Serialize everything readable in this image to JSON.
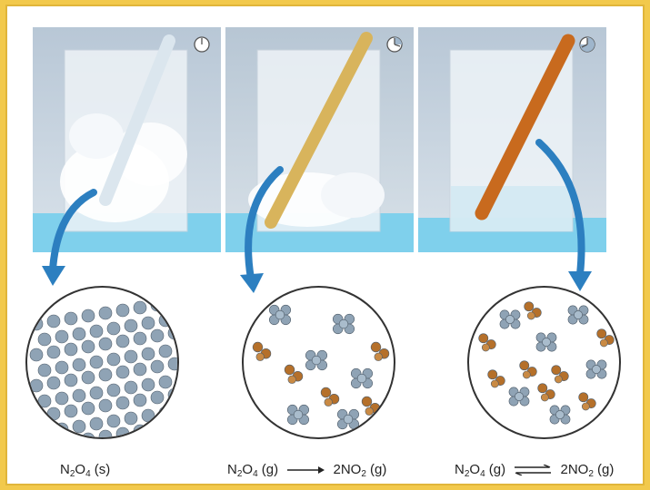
{
  "stages": [
    {
      "time_icon": "clock-start-icon",
      "liquid_color": "#dfe9f2",
      "tube_color": "#dbe6ee",
      "caption": {
        "formula": "N",
        "sub1": "2",
        "mid": "O",
        "sub2": "4",
        "state": " (s)"
      }
    },
    {
      "time_icon": "clock-quarter-icon",
      "liquid_color": "#e7eef3",
      "tube_color": "#d8b45c",
      "caption": {
        "formula": "N",
        "sub1": "2",
        "mid": "O",
        "sub2": "4",
        "state": " (g)",
        "arrow": "forward",
        "product_coef": "2NO",
        "product_sub": "2",
        "product_state": " (g)"
      }
    },
    {
      "time_icon": "clock-three-quarter-icon",
      "liquid_color": "#eaf3f8",
      "tube_color": "#c86a1e",
      "caption": {
        "formula": "N",
        "sub1": "2",
        "mid": "O",
        "sub2": "4",
        "state": " (g)",
        "arrow": "equilibrium",
        "product_coef": "2NO",
        "product_sub": "2",
        "product_state": " (g)"
      }
    }
  ],
  "colors": {
    "background": "#f2c94c",
    "arrow_blue": "#2c7fc0",
    "n2o4_molecule": "#8fa3b5",
    "no2_molecule": "#b5702a",
    "water": "#6fc3e0"
  }
}
